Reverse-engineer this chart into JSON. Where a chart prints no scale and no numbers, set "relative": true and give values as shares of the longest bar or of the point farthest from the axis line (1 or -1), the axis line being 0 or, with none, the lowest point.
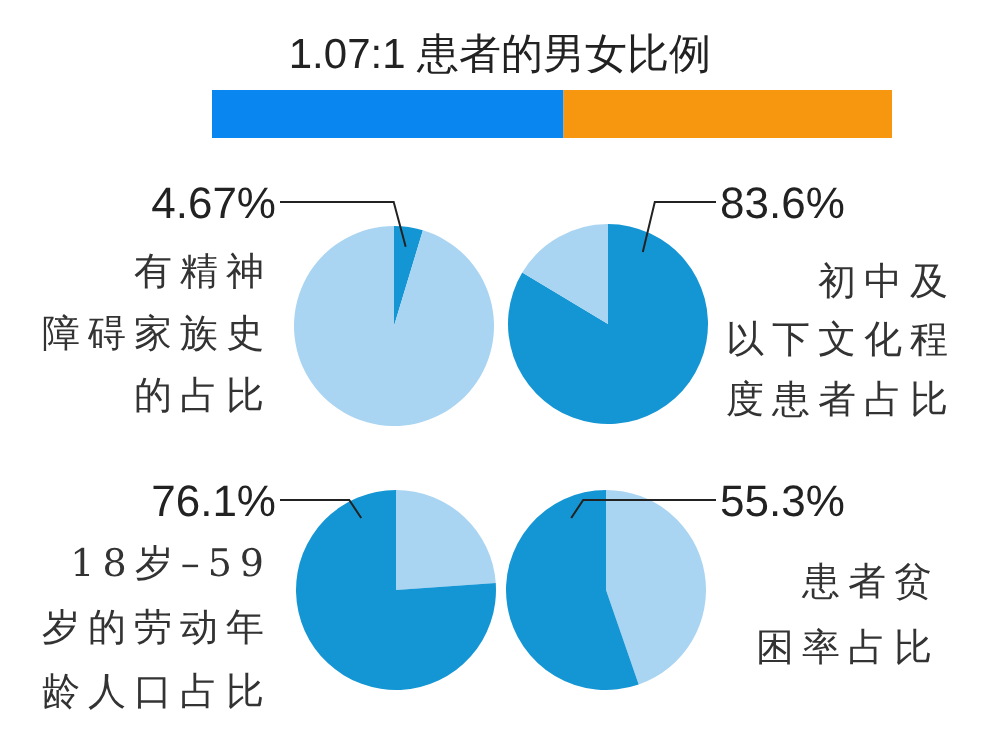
{
  "chart_data": [
    {
      "type": "bar",
      "title": "1.07:1  患者的男女比例",
      "orientation": "horizontal",
      "stacked": true,
      "relative": true,
      "categories": [
        null
      ],
      "series": [
        {
          "color": "#0a86f0",
          "values": [
            0.517
          ]
        },
        {
          "color": "#f7960f",
          "values": [
            0.483
          ]
        }
      ]
    },
    {
      "type": "pie",
      "title": "有精神障碍家族史的占比",
      "categories": [
        null,
        null
      ],
      "values": [
        4.67,
        95.33
      ],
      "colors": [
        "#1596d4",
        "#a9d4f2"
      ],
      "value_labels": [
        "4.67%",
        null
      ]
    },
    {
      "type": "pie",
      "title": "初中及以下文化程度患者占比",
      "categories": [
        null,
        null
      ],
      "values": [
        83.6,
        16.4
      ],
      "colors": [
        "#1596d4",
        "#a9d4f2"
      ],
      "value_labels": [
        "83.6%",
        null
      ]
    },
    {
      "type": "pie",
      "title": "18岁–59岁的劳动年龄人口占比",
      "categories": [
        null,
        null
      ],
      "values": [
        23.9,
        76.1
      ],
      "colors": [
        "#a9d4f2",
        "#1596d4"
      ],
      "value_labels": [
        null,
        "76.1%"
      ]
    },
    {
      "type": "pie",
      "title": "患者贫困率占比",
      "categories": [
        null,
        null
      ],
      "values": [
        44.7,
        55.3
      ],
      "colors": [
        "#a9d4f2",
        "#1596d4"
      ],
      "value_labels": [
        null,
        "55.3%"
      ]
    }
  ]
}
